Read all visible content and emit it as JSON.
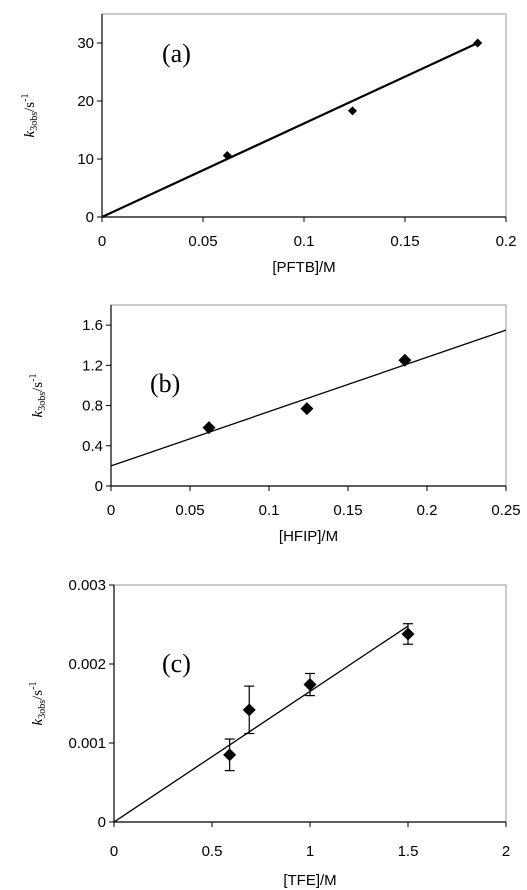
{
  "chart_data": [
    {
      "type": "scatter",
      "panel_label": "(a)",
      "xlabel": "[PFTB]/M",
      "ylabel": {
        "symbol": "k",
        "subscript": "3obs",
        "unit": "/s",
        "superscript": "-1"
      },
      "xlim": [
        0,
        0.2
      ],
      "ylim": [
        0,
        35
      ],
      "x_ticks": [
        0,
        0.05,
        0.1,
        0.15,
        0.2
      ],
      "x_tick_labels": [
        "0",
        "0.05",
        "0.1",
        "0.15",
        "0.2"
      ],
      "y_ticks": [
        0,
        10,
        20,
        30
      ],
      "y_tick_labels": [
        "0",
        "10",
        "20",
        "30"
      ],
      "points": [
        {
          "x": 0.062,
          "y": 10.6
        },
        {
          "x": 0.124,
          "y": 18.3
        },
        {
          "x": 0.186,
          "y": 30.0
        }
      ],
      "fit_line": {
        "x": [
          0,
          0.186
        ],
        "y": [
          0,
          30.0
        ]
      },
      "grid": false
    },
    {
      "type": "scatter",
      "panel_label": "(b)",
      "xlabel": "[HFIP]/M",
      "ylabel": {
        "symbol": "k",
        "subscript": "3obs",
        "unit": "/s",
        "superscript": "-1"
      },
      "xlim": [
        0,
        0.25
      ],
      "ylim": [
        0,
        1.8
      ],
      "x_ticks": [
        0,
        0.05,
        0.1,
        0.15,
        0.2,
        0.25
      ],
      "x_tick_labels": [
        "0",
        "0.05",
        "0.1",
        "0.15",
        "0.2",
        "0.25"
      ],
      "y_ticks": [
        0,
        0.4,
        0.8,
        1.2,
        1.6
      ],
      "y_tick_labels": [
        "0",
        "0.4",
        "0.8",
        "1.2",
        "1.6"
      ],
      "points": [
        {
          "x": 0.062,
          "y": 0.58
        },
        {
          "x": 0.124,
          "y": 0.77
        },
        {
          "x": 0.186,
          "y": 1.25
        }
      ],
      "fit_line": {
        "x": [
          0,
          0.25
        ],
        "y": [
          0.2,
          1.55
        ]
      },
      "grid": false
    },
    {
      "type": "scatter",
      "panel_label": "(c)",
      "xlabel": "[TFE]/M",
      "ylabel": {
        "symbol": "k",
        "subscript": "3obs",
        "unit": "/s",
        "superscript": "-1"
      },
      "xlim": [
        0,
        2
      ],
      "ylim": [
        0,
        0.003
      ],
      "x_ticks": [
        0,
        0.5,
        1,
        1.5,
        2
      ],
      "x_tick_labels": [
        "0",
        "0.5",
        "1",
        "1.5",
        "2"
      ],
      "y_ticks": [
        0,
        0.001,
        0.002,
        0.003
      ],
      "y_tick_labels": [
        "0",
        "0.001",
        "0.002",
        "0.003"
      ],
      "points": [
        {
          "x": 0.59,
          "y": 0.00085,
          "err": 0.0002
        },
        {
          "x": 0.69,
          "y": 0.00142,
          "err": 0.0003
        },
        {
          "x": 1.0,
          "y": 0.00174,
          "err": 0.00014
        },
        {
          "x": 1.5,
          "y": 0.00238,
          "err": 0.00013
        }
      ],
      "fit_line": {
        "x": [
          0,
          1.5
        ],
        "y": [
          0,
          0.00248
        ]
      },
      "grid": false
    }
  ]
}
